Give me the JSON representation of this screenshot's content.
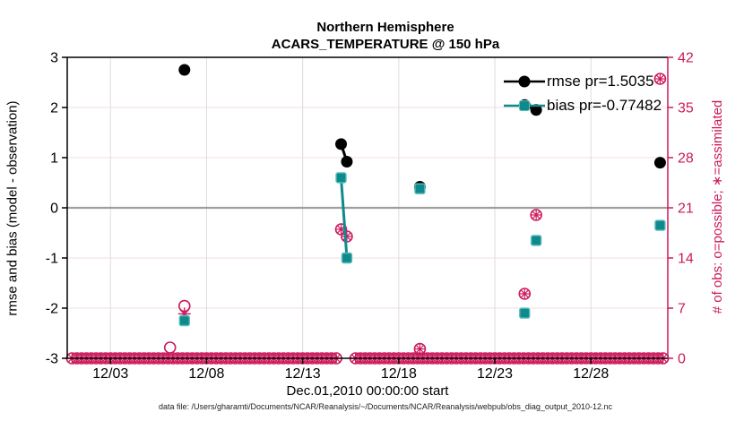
{
  "title": {
    "line1": "Northern Hemisphere",
    "line2": "ACARS_TEMPERATURE @ 150 hPa"
  },
  "footer": "data file: /Users/gharamti/Documents/NCAR/Reanalysis/~/Documents/NCAR/Reanalysis/webpub/obs_diag_output_2010-12.nc",
  "colors": {
    "obs_pink": "#cc1a5c",
    "bias_teal": "#0f8a8c",
    "bias_teal_edge": "#5cbdbd",
    "rmse_black": "#000000",
    "grid_horizontal": "#f2dce2",
    "grid_vertical": "#dcdcdc",
    "zero_line": "#9e9e9e",
    "spine_black": "#000000",
    "spine_right_pink": "#cc1a5c"
  },
  "chart_data": {
    "type": "line",
    "title": "Northern Hemisphere",
    "subtitle": "ACARS_TEMPERATURE @ 150 hPa",
    "xlabel": "Dec.01,2010 00:00:00 start",
    "ylabel_left": "rmse and bias (model - observation)",
    "ylabel_right": "# of obs: o=possible; ∗=assimilated",
    "x_unit_note": "x values are day offsets from Dec.01,2010 00:00",
    "xlim": [
      -0.25,
      31
    ],
    "ylim_left": [
      -3,
      3
    ],
    "ylim_right": [
      0,
      42
    ],
    "x_ticks": [
      {
        "d": 2,
        "label": "12/03"
      },
      {
        "d": 7,
        "label": "12/08"
      },
      {
        "d": 12,
        "label": "12/13"
      },
      {
        "d": 17,
        "label": "12/18"
      },
      {
        "d": 22,
        "label": "12/23"
      },
      {
        "d": 27,
        "label": "12/28"
      }
    ],
    "y_ticks_left": [
      -3,
      -2,
      -1,
      0,
      1,
      2,
      3
    ],
    "y_ticks_right": [
      0,
      7,
      14,
      21,
      28,
      35,
      42
    ],
    "legend": [
      {
        "label": "rmse pr=1.5035",
        "series": "rmse"
      },
      {
        "label": "bias pr=-0.77482",
        "series": "bias"
      }
    ],
    "series": [
      {
        "name": "rmse",
        "axis": "left",
        "marker": "filled-circle",
        "points": [
          {
            "d": 5.85,
            "v": 2.75
          },
          {
            "d": 14.0,
            "v": 1.27
          },
          {
            "d": 14.3,
            "v": 0.92
          },
          {
            "d": 18.1,
            "v": 0.42
          },
          {
            "d": 23.55,
            "v": 2.05
          },
          {
            "d": 24.15,
            "v": 1.95
          },
          {
            "d": 30.6,
            "v": 0.9
          }
        ],
        "lines": [
          [
            {
              "d": 14.0,
              "v": 1.27
            },
            {
              "d": 14.3,
              "v": 0.92
            }
          ],
          [
            {
              "d": 23.55,
              "v": 2.05
            },
            {
              "d": 24.15,
              "v": 1.95
            }
          ]
        ]
      },
      {
        "name": "bias",
        "axis": "left",
        "marker": "filled-square",
        "points": [
          {
            "d": 5.85,
            "v": -2.25
          },
          {
            "d": 14.0,
            "v": 0.6
          },
          {
            "d": 14.3,
            "v": -1.0
          },
          {
            "d": 18.1,
            "v": 0.38
          },
          {
            "d": 23.55,
            "v": -2.1
          },
          {
            "d": 24.15,
            "v": -0.65
          },
          {
            "d": 30.6,
            "v": -0.35
          }
        ],
        "lines": [
          [
            {
              "d": 14.0,
              "v": 0.6
            },
            {
              "d": 14.3,
              "v": -1.0
            }
          ]
        ]
      }
    ],
    "obs_counts": {
      "axis": "right",
      "possible_only": [
        {
          "d": 5.1,
          "n": 1.5
        },
        {
          "d": 5.85,
          "n": 7.3
        }
      ],
      "assimilated_only": [
        {
          "d": 5.85,
          "n": 6.2
        }
      ],
      "possible_and_assimilated": [
        {
          "d": 14.0,
          "n": 18
        },
        {
          "d": 14.3,
          "n": 17
        },
        {
          "d": 18.1,
          "n": 1.3
        },
        {
          "d": 23.55,
          "n": 9
        },
        {
          "d": 24.15,
          "n": 20
        },
        {
          "d": 30.6,
          "n": 39
        }
      ],
      "baseline_band": {
        "from": 0,
        "to": 30.75,
        "step": 0.25,
        "n": 0,
        "skip_d": [
          14.0,
          14.25,
          14.5
        ]
      }
    }
  }
}
